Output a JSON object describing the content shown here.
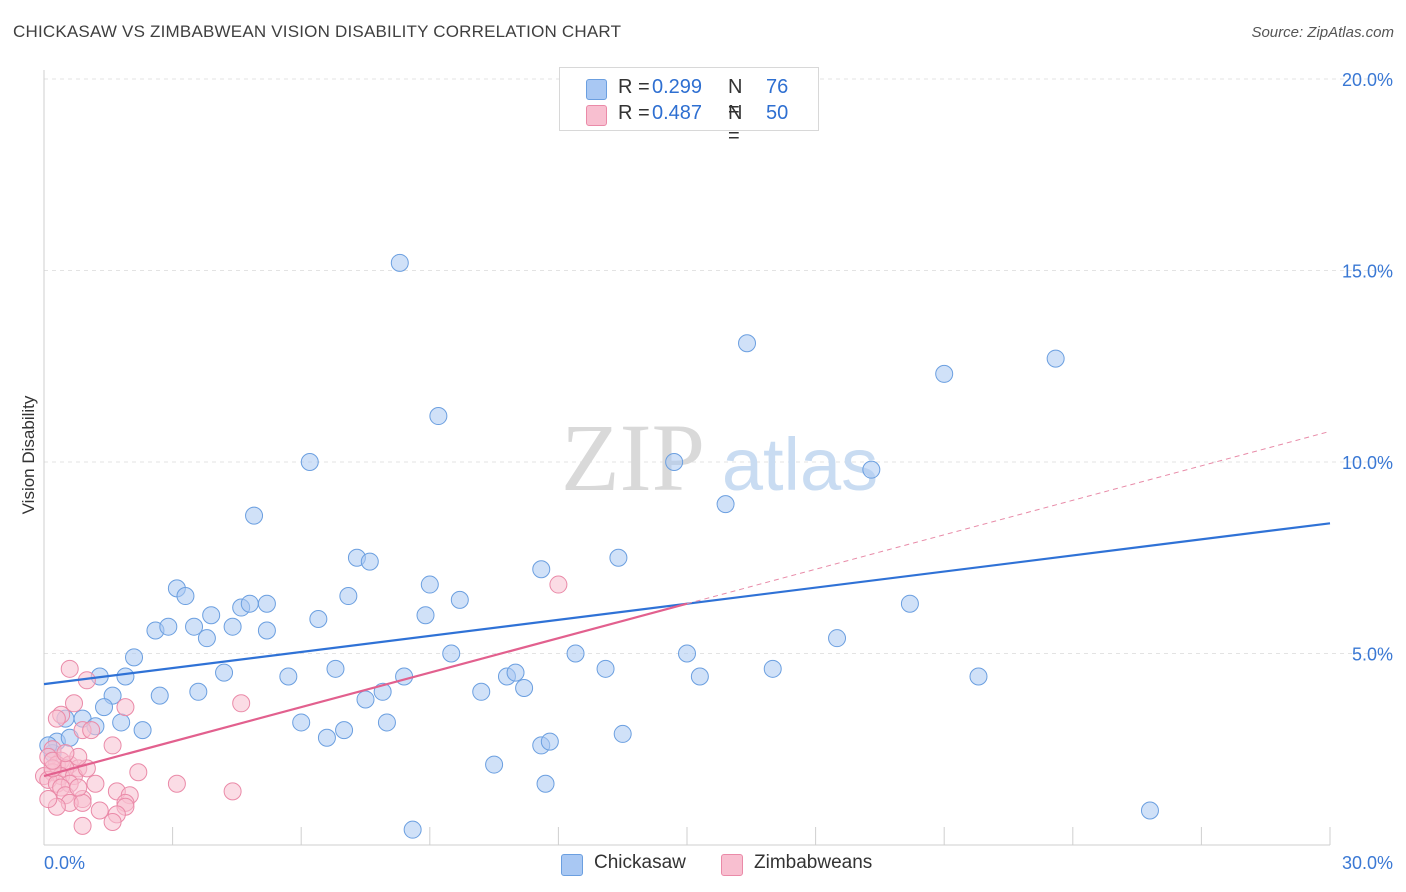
{
  "title": "CHICKASAW VS ZIMBABWEAN VISION DISABILITY CORRELATION CHART",
  "source": "Source: ZipAtlas.com",
  "watermark": {
    "zip": "ZIP",
    "atlas": "atlas"
  },
  "legend_top": [
    {
      "r_label": "R =",
      "r_value": "0.299",
      "n_label": "N =",
      "n_value": "76",
      "color": "#a9c8f3",
      "border": "#6b9fe0"
    },
    {
      "r_label": "R =",
      "r_value": "0.487",
      "n_label": "N =",
      "n_value": "50",
      "color": "#f8bfd0",
      "border": "#ea8aa8"
    }
  ],
  "legend_bottom": [
    {
      "label": "Chickasaw",
      "color": "#a9c8f3",
      "border": "#6b9fe0"
    },
    {
      "label": "Zimbabweans",
      "color": "#f8bfd0",
      "border": "#ea8aa8"
    }
  ],
  "chart_data": {
    "type": "scatter",
    "title": "CHICKASAW VS ZIMBABWEAN VISION DISABILITY CORRELATION CHART",
    "xlabel": "",
    "ylabel": "Vision Disability",
    "xlim": [
      0,
      30
    ],
    "ylim": [
      0,
      20
    ],
    "x_tick_labels": [
      {
        "value": 0,
        "label": "0.0%"
      },
      {
        "value": 30,
        "label": "30.0%"
      }
    ],
    "y_tick_labels": [
      {
        "value": 5,
        "label": "5.0%"
      },
      {
        "value": 10,
        "label": "10.0%"
      },
      {
        "value": 15,
        "label": "15.0%"
      },
      {
        "value": 20,
        "label": "20.0%"
      }
    ],
    "series": [
      {
        "name": "Chickasaw",
        "color": "#a9c8f3",
        "stroke": "#6b9fe0",
        "trend": {
          "x": [
            0,
            30
          ],
          "y": [
            4.2,
            8.4
          ],
          "color": "#2f72d6"
        },
        "points": [
          [
            8.3,
            15.2
          ],
          [
            16.4,
            13.1
          ],
          [
            21.0,
            12.3
          ],
          [
            23.6,
            12.7
          ],
          [
            9.2,
            11.2
          ],
          [
            6.2,
            10.0
          ],
          [
            14.7,
            10.0
          ],
          [
            19.3,
            9.8
          ],
          [
            15.9,
            8.9
          ],
          [
            4.9,
            8.6
          ],
          [
            7.3,
            7.5
          ],
          [
            7.6,
            7.4
          ],
          [
            11.6,
            7.2
          ],
          [
            13.4,
            7.5
          ],
          [
            3.1,
            6.7
          ],
          [
            3.3,
            6.5
          ],
          [
            7.1,
            6.5
          ],
          [
            9.0,
            6.8
          ],
          [
            9.7,
            6.4
          ],
          [
            4.6,
            6.2
          ],
          [
            4.8,
            6.3
          ],
          [
            5.2,
            6.3
          ],
          [
            3.9,
            6.0
          ],
          [
            6.4,
            5.9
          ],
          [
            8.9,
            6.0
          ],
          [
            20.2,
            6.3
          ],
          [
            2.6,
            5.6
          ],
          [
            2.9,
            5.7
          ],
          [
            3.5,
            5.7
          ],
          [
            3.8,
            5.4
          ],
          [
            4.4,
            5.7
          ],
          [
            5.2,
            5.6
          ],
          [
            18.5,
            5.4
          ],
          [
            2.1,
            4.9
          ],
          [
            9.5,
            5.0
          ],
          [
            12.4,
            5.0
          ],
          [
            15.0,
            5.0
          ],
          [
            1.3,
            4.4
          ],
          [
            1.9,
            4.4
          ],
          [
            4.2,
            4.5
          ],
          [
            5.7,
            4.4
          ],
          [
            6.8,
            4.6
          ],
          [
            8.4,
            4.4
          ],
          [
            10.8,
            4.4
          ],
          [
            11.0,
            4.5
          ],
          [
            13.1,
            4.6
          ],
          [
            15.3,
            4.4
          ],
          [
            17.0,
            4.6
          ],
          [
            21.8,
            4.4
          ],
          [
            1.6,
            3.9
          ],
          [
            2.7,
            3.9
          ],
          [
            3.6,
            4.0
          ],
          [
            7.5,
            3.8
          ],
          [
            7.9,
            4.0
          ],
          [
            10.2,
            4.0
          ],
          [
            11.2,
            4.1
          ],
          [
            1.4,
            3.6
          ],
          [
            1.8,
            3.2
          ],
          [
            2.3,
            3.0
          ],
          [
            6.0,
            3.2
          ],
          [
            6.6,
            2.8
          ],
          [
            7.0,
            3.0
          ],
          [
            8.0,
            3.2
          ],
          [
            13.5,
            2.9
          ],
          [
            0.5,
            3.3
          ],
          [
            0.9,
            3.3
          ],
          [
            1.2,
            3.1
          ],
          [
            0.3,
            2.7
          ],
          [
            0.6,
            2.8
          ],
          [
            0.2,
            2.4
          ],
          [
            0.1,
            2.6
          ],
          [
            11.6,
            2.6
          ],
          [
            11.8,
            2.7
          ],
          [
            10.5,
            2.1
          ],
          [
            11.7,
            1.6
          ],
          [
            8.6,
            0.4
          ],
          [
            25.8,
            0.9
          ]
        ]
      },
      {
        "name": "Zimbabweans",
        "color": "#f8bfd0",
        "stroke": "#ea8aa8",
        "trend": {
          "x": [
            0,
            15.0
          ],
          "y": [
            1.8,
            6.3
          ],
          "color": "#e2608e"
        },
        "trend_extension": {
          "x": [
            15.0,
            30
          ],
          "y": [
            6.3,
            10.8
          ],
          "color": "#e88ba8"
        },
        "points": [
          [
            12.0,
            6.8
          ],
          [
            0.6,
            4.6
          ],
          [
            1.0,
            4.3
          ],
          [
            0.7,
            3.7
          ],
          [
            0.4,
            3.4
          ],
          [
            0.3,
            3.3
          ],
          [
            0.9,
            3.0
          ],
          [
            1.1,
            3.0
          ],
          [
            1.9,
            3.6
          ],
          [
            4.6,
            3.7
          ],
          [
            1.6,
            2.6
          ],
          [
            0.2,
            2.5
          ],
          [
            0.4,
            2.2
          ],
          [
            0.1,
            2.3
          ],
          [
            0.3,
            2.1
          ],
          [
            0.6,
            2.1
          ],
          [
            0.8,
            2.0
          ],
          [
            0.5,
            2.0
          ],
          [
            0.2,
            1.9
          ],
          [
            0.4,
            1.8
          ],
          [
            0.7,
            1.8
          ],
          [
            1.0,
            2.0
          ],
          [
            0.0,
            1.8
          ],
          [
            0.1,
            1.7
          ],
          [
            0.3,
            1.6
          ],
          [
            0.2,
            2.0
          ],
          [
            0.6,
            1.6
          ],
          [
            0.8,
            2.3
          ],
          [
            2.2,
            1.9
          ],
          [
            0.4,
            1.5
          ],
          [
            0.5,
            1.3
          ],
          [
            0.9,
            1.2
          ],
          [
            1.2,
            1.6
          ],
          [
            1.7,
            1.4
          ],
          [
            2.0,
            1.3
          ],
          [
            3.1,
            1.6
          ],
          [
            4.4,
            1.4
          ],
          [
            0.6,
            1.1
          ],
          [
            0.9,
            1.1
          ],
          [
            1.3,
            0.9
          ],
          [
            1.9,
            1.1
          ],
          [
            1.9,
            1.0
          ],
          [
            1.7,
            0.8
          ],
          [
            1.6,
            0.6
          ],
          [
            0.9,
            0.5
          ],
          [
            0.3,
            1.0
          ],
          [
            0.2,
            2.2
          ],
          [
            0.5,
            2.4
          ],
          [
            0.8,
            1.5
          ],
          [
            0.1,
            1.2
          ]
        ]
      }
    ]
  }
}
